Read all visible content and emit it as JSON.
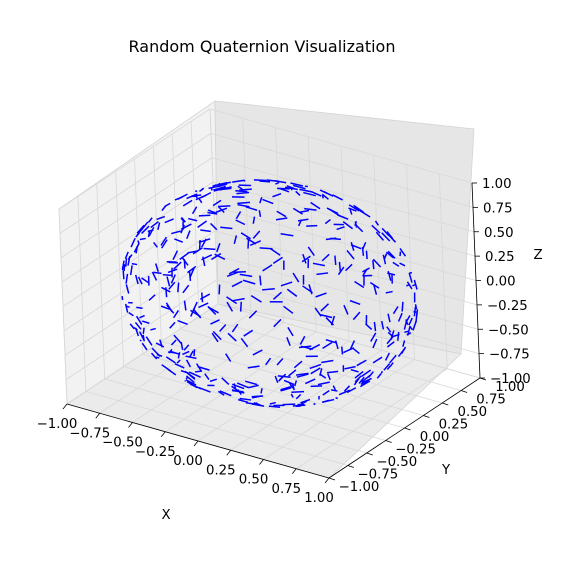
{
  "chart_data": {
    "type": "scatter",
    "subtype": "3d-quiver",
    "title": "Random Quaternion Visualization",
    "xlabel": "X",
    "ylabel": "Y",
    "zlabel": "Z",
    "xlim": [
      -1.0,
      1.0
    ],
    "ylim": [
      -1.0,
      1.0
    ],
    "zlim": [
      -1.0,
      1.0
    ],
    "xticks": [
      "−1.00",
      "−0.75",
      "−0.50",
      "−0.25",
      "0.00",
      "0.25",
      "0.50",
      "0.75",
      "1.00"
    ],
    "yticks": [
      "−1.00",
      "−0.75",
      "−0.50",
      "−0.25",
      "0.00",
      "0.25",
      "0.50",
      "0.75",
      "1.00"
    ],
    "zticks": [
      "−1.00",
      "−0.75",
      "−0.50",
      "−0.25",
      "0.00",
      "0.25",
      "0.50",
      "0.75",
      "1.00"
    ],
    "grid": true,
    "series": [
      {
        "color": "#0000ff",
        "description_marker": "short line segments (quiver arrows) on the surface of the unit sphere"
      }
    ]
  }
}
